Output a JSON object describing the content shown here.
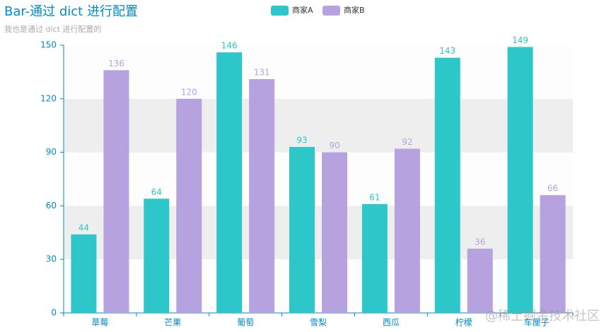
{
  "chart_data": {
    "type": "bar",
    "title": "Bar-通过 dict 进行配置",
    "subtitle": "我也是通过 dict 进行配置的",
    "categories": [
      "草莓",
      "芒果",
      "葡萄",
      "雪梨",
      "西瓜",
      "柠檬",
      "车厘子"
    ],
    "series": [
      {
        "name": "商家A",
        "color": "#2ec7c9",
        "values": [
          44,
          64,
          146,
          93,
          61,
          143,
          149
        ]
      },
      {
        "name": "商家B",
        "color": "#b6a2de",
        "values": [
          136,
          120,
          131,
          90,
          92,
          36,
          66
        ]
      }
    ],
    "ylim": [
      0,
      150
    ],
    "yticks": [
      0,
      30,
      60,
      90,
      120,
      150
    ],
    "split_area": true,
    "legend_position": "top",
    "watermark": "@稀土掘金技术社区"
  }
}
